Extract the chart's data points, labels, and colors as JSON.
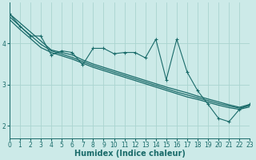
{
  "xlabel": "Humidex (Indice chaleur)",
  "xlim": [
    0,
    23
  ],
  "ylim": [
    1.7,
    5.0
  ],
  "yticks": [
    2,
    3,
    4
  ],
  "xticks": [
    0,
    1,
    2,
    3,
    4,
    5,
    6,
    7,
    8,
    9,
    10,
    11,
    12,
    13,
    14,
    15,
    16,
    17,
    18,
    19,
    20,
    21,
    22,
    23
  ],
  "bg_color": "#cceae8",
  "grid_color": "#aad4d0",
  "line_color": "#1a6b6a",
  "series": {
    "jagged": [
      4.72,
      4.42,
      4.18,
      4.18,
      3.72,
      3.82,
      3.78,
      3.48,
      3.88,
      3.88,
      3.75,
      3.78,
      3.78,
      3.65,
      4.1,
      3.12,
      4.1,
      3.3,
      2.85,
      2.52,
      2.18,
      2.1,
      2.4,
      2.52
    ],
    "linear1": [
      4.72,
      4.5,
      4.28,
      4.06,
      3.84,
      3.78,
      3.72,
      3.6,
      3.5,
      3.42,
      3.34,
      3.26,
      3.18,
      3.1,
      3.02,
      2.94,
      2.87,
      2.8,
      2.72,
      2.65,
      2.58,
      2.51,
      2.45,
      2.52
    ],
    "linear2": [
      4.65,
      4.42,
      4.2,
      3.98,
      3.82,
      3.74,
      3.66,
      3.56,
      3.46,
      3.38,
      3.3,
      3.22,
      3.14,
      3.06,
      2.98,
      2.9,
      2.82,
      2.75,
      2.68,
      2.61,
      2.54,
      2.48,
      2.43,
      2.49
    ],
    "linear3": [
      4.58,
      4.34,
      4.12,
      3.9,
      3.78,
      3.7,
      3.62,
      3.52,
      3.42,
      3.34,
      3.26,
      3.18,
      3.1,
      3.02,
      2.94,
      2.86,
      2.78,
      2.7,
      2.64,
      2.57,
      2.5,
      2.44,
      2.4,
      2.46
    ]
  },
  "tick_fontsize": 5.5,
  "axis_fontsize": 7
}
